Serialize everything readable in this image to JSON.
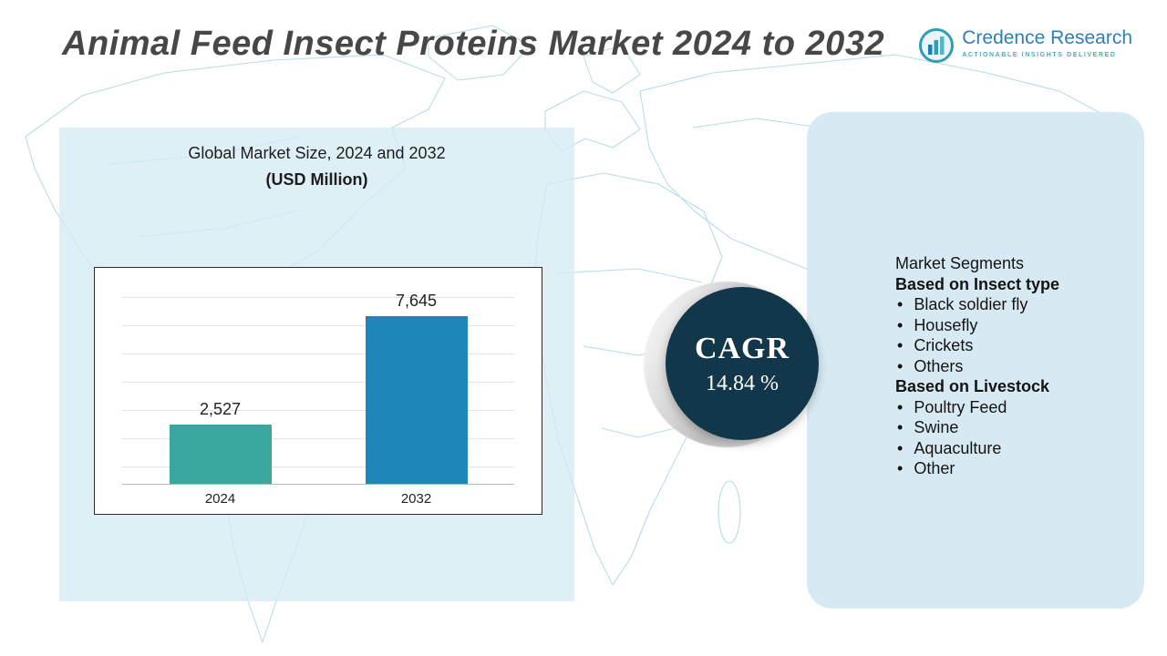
{
  "title": "Animal Feed Insect Proteins Market 2024 to 2032",
  "logo": {
    "name": "Credence Research",
    "tagline": "Actionable Insights Delivered"
  },
  "chart_data": {
    "type": "bar",
    "title": "Global Market Size, 2024 and 2032",
    "subtitle": "(USD Million)",
    "categories": [
      "2024",
      "2032"
    ],
    "values": [
      2527,
      7645
    ],
    "value_labels": [
      "2,527",
      "7,645"
    ],
    "bar_colors": [
      "#3aa79f",
      "#1f87b8"
    ],
    "ylim": [
      0,
      8200
    ],
    "grid": true,
    "legend": "none"
  },
  "cagr": {
    "label": "CAGR",
    "value": "14.84 %"
  },
  "segments": {
    "heading": "Market Segments",
    "groups": [
      {
        "title": "Based on  Insect type",
        "items": [
          "Black soldier fly",
          "Housefly",
          "Crickets",
          "Others"
        ]
      },
      {
        "title": "Based on Livestock",
        "items": [
          "Poultry Feed",
          "Swine",
          "Aquaculture",
          "Other"
        ]
      }
    ]
  },
  "colors": {
    "bar_2024": "#3aa79f",
    "bar_2032": "#1f87b8",
    "cagr_circle": "#12374a",
    "panel_bg": "#d7eaf4",
    "map_line": "#b7dcec",
    "logo_blue": "#2d7fb8",
    "logo_teal": "#3fb0c4",
    "title_gray": "#474747"
  }
}
